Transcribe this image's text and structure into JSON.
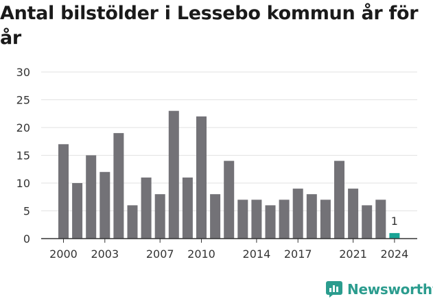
{
  "chart_data": {
    "type": "bar",
    "title": "Antal bilstölder i Lessebo kommun år för år",
    "years": [
      2000,
      2001,
      2002,
      2003,
      2004,
      2005,
      2006,
      2007,
      2008,
      2009,
      2010,
      2011,
      2012,
      2013,
      2014,
      2015,
      2016,
      2017,
      2018,
      2019,
      2020,
      2021,
      2022,
      2023,
      2024
    ],
    "values": [
      17,
      10,
      15,
      12,
      19,
      6,
      11,
      8,
      23,
      11,
      22,
      8,
      14,
      7,
      7,
      6,
      7,
      9,
      8,
      7,
      14,
      9,
      6,
      7,
      1
    ],
    "x_tick_labels": [
      "2000",
      "2003",
      "2007",
      "2010",
      "2014",
      "2017",
      "2021",
      "2024"
    ],
    "y_ticks": [
      "0",
      "5",
      "10",
      "15",
      "20",
      "25",
      "30"
    ],
    "ylim": [
      0,
      30
    ],
    "highlight": {
      "year": 2024,
      "label": "1"
    },
    "xlabel": "",
    "ylabel": "",
    "grid": true,
    "colors": {
      "bar": "#737277",
      "highlight": "#19a495",
      "grid": "#e2e2e2",
      "axis": "#333333",
      "text": "#333333"
    }
  },
  "logo": {
    "text": "Newsworthy",
    "color": "#2b9c8e",
    "icon": "bar-chart-badge-icon"
  }
}
